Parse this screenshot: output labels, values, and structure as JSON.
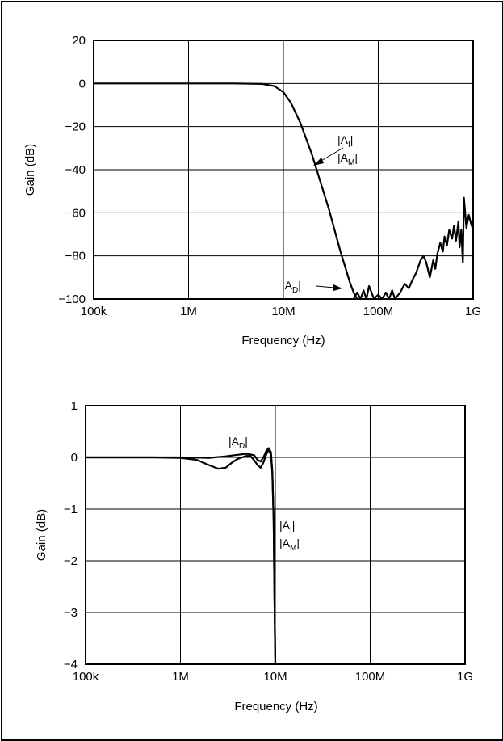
{
  "colors": {
    "background": "#ffffff",
    "ink": "#000000"
  },
  "chart_data": [
    {
      "type": "line",
      "title": "",
      "xlabel": "Frequency (Hz)",
      "ylabel": "Gain (dB)",
      "xscale": "log",
      "xlim": [
        100000,
        1000000000
      ],
      "ylim": [
        -100,
        20
      ],
      "x_ticks": [
        100000,
        1000000,
        10000000,
        100000000,
        1000000000
      ],
      "x_tick_labels": [
        "100k",
        "1M",
        "10M",
        "100M",
        "1G"
      ],
      "y_ticks": [
        20,
        0,
        -20,
        -40,
        -60,
        -80,
        -100
      ],
      "y_tick_labels": [
        "20",
        "0",
        "−20",
        "−40",
        "−60",
        "−80",
        "−100"
      ],
      "grid": true,
      "annotations": [
        {
          "base": "|A",
          "sub": "I",
          "tail": "|"
        },
        {
          "base": "|A",
          "sub": "M",
          "tail": "|"
        },
        {
          "base": "|A",
          "sub": "D",
          "tail": "|"
        }
      ],
      "series": [
        {
          "label_ref": "|AI| |AM|",
          "x": [
            100000,
            1000000,
            3000000,
            6000000,
            8000000,
            10000000,
            12000000,
            15000000,
            20000000,
            30000000,
            40000000,
            50000000,
            55000000,
            60000000
          ],
          "y": [
            0,
            0,
            0,
            -0.2,
            -1.2,
            -4,
            -9,
            -18,
            -33,
            -58,
            -78,
            -92,
            -97,
            -100
          ]
        },
        {
          "label_ref": "|AD|",
          "x": [
            55000000,
            60000000,
            65000000,
            70000000,
            75000000,
            80000000,
            85000000,
            90000000,
            100000000,
            110000000,
            120000000,
            130000000,
            140000000,
            150000000,
            170000000,
            190000000,
            210000000,
            230000000,
            250000000,
            280000000,
            300000000,
            320000000,
            350000000,
            380000000,
            400000000,
            420000000,
            450000000,
            480000000,
            500000000,
            530000000,
            560000000,
            600000000,
            630000000,
            660000000,
            700000000,
            720000000,
            750000000,
            780000000,
            800000000,
            850000000,
            900000000,
            950000000,
            1000000000
          ],
          "y": [
            -100,
            -97,
            -100,
            -96,
            -100,
            -94,
            -97,
            -100,
            -98,
            -100,
            -97,
            -100,
            -96,
            -100,
            -97,
            -93,
            -95,
            -91,
            -88,
            -82,
            -80,
            -83,
            -90,
            -82,
            -86,
            -79,
            -74,
            -78,
            -71,
            -75,
            -68,
            -72,
            -66,
            -73,
            -64,
            -76,
            -68,
            -83,
            -53,
            -67,
            -61,
            -65,
            -68
          ]
        }
      ]
    },
    {
      "type": "line",
      "title": "",
      "xlabel": "Frequency (Hz)",
      "ylabel": "Gain (dB)",
      "xscale": "log",
      "xlim": [
        100000,
        1000000000
      ],
      "ylim": [
        -4,
        1
      ],
      "x_ticks": [
        100000,
        1000000,
        10000000,
        100000000,
        1000000000
      ],
      "x_tick_labels": [
        "100k",
        "1M",
        "10M",
        "100M",
        "1G"
      ],
      "y_ticks": [
        1,
        0,
        -1,
        -2,
        -3,
        -4
      ],
      "y_tick_labels": [
        "1",
        "0",
        "−1",
        "−2",
        "−3",
        "−4"
      ],
      "grid": true,
      "annotations": [
        {
          "base": "|A",
          "sub": "D",
          "tail": "|"
        },
        {
          "base": "|A",
          "sub": "I",
          "tail": "|"
        },
        {
          "base": "|A",
          "sub": "M",
          "tail": "|"
        }
      ],
      "series": [
        {
          "label_ref": "|AD|",
          "x": [
            100000,
            500000,
            1000000,
            1500000,
            2000000,
            2500000,
            3000000,
            3500000,
            4000000,
            5000000,
            5500000,
            6000000,
            6500000,
            7000000,
            7500000,
            8000000,
            8500000,
            9000000,
            9300000,
            9600000,
            9800000,
            10000000
          ],
          "y": [
            0,
            0,
            -0.01,
            -0.05,
            -0.15,
            -0.22,
            -0.2,
            -0.1,
            -0.03,
            0.03,
            0.02,
            -0.06,
            -0.15,
            -0.2,
            -0.1,
            0.05,
            0.15,
            0.05,
            -0.3,
            -1.2,
            -2.8,
            -4
          ]
        },
        {
          "label_ref": "|AI| |AM|",
          "x": [
            100000,
            1000000,
            2000000,
            3000000,
            4000000,
            5000000,
            6000000,
            6500000,
            7000000,
            7500000,
            8000000,
            8500000,
            9000000,
            9300000,
            9600000,
            9800000,
            10000000
          ],
          "y": [
            0,
            0,
            -0.01,
            0.02,
            0.05,
            0.07,
            0.04,
            -0.05,
            -0.08,
            0.0,
            0.12,
            0.18,
            0.1,
            -0.3,
            -1.2,
            -2.8,
            -4
          ]
        }
      ]
    }
  ]
}
